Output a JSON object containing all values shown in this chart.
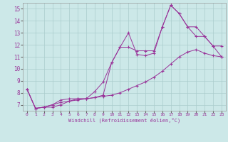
{
  "xlabel": "Windchill (Refroidissement éolien,°C)",
  "xlim": [
    -0.5,
    23.5
  ],
  "ylim": [
    6.5,
    15.5
  ],
  "xticks": [
    0,
    1,
    2,
    3,
    4,
    5,
    6,
    7,
    8,
    9,
    10,
    11,
    12,
    13,
    14,
    15,
    16,
    17,
    18,
    19,
    20,
    21,
    22,
    23
  ],
  "yticks": [
    7,
    8,
    9,
    10,
    11,
    12,
    13,
    14,
    15
  ],
  "background_color": "#cce8e8",
  "grid_color": "#aacccc",
  "line_color": "#993399",
  "line1_x": [
    0,
    1,
    2,
    3,
    4,
    5,
    6,
    7,
    8,
    9,
    10,
    11,
    12,
    13,
    14,
    15,
    16,
    17,
    18,
    19,
    20,
    21,
    22,
    23
  ],
  "line1_y": [
    8.3,
    6.7,
    6.8,
    7.0,
    7.4,
    7.5,
    7.5,
    7.5,
    7.6,
    7.8,
    10.5,
    11.8,
    13.0,
    11.2,
    11.1,
    11.3,
    13.5,
    15.3,
    14.6,
    13.5,
    13.5,
    12.7,
    11.9,
    11.0
  ],
  "line2_x": [
    0,
    1,
    2,
    3,
    4,
    5,
    6,
    7,
    8,
    9,
    10,
    11,
    12,
    13,
    14,
    15,
    16,
    17,
    18,
    19,
    20,
    21,
    22,
    23
  ],
  "line2_y": [
    8.3,
    6.7,
    6.8,
    7.0,
    7.2,
    7.3,
    7.4,
    7.5,
    7.6,
    7.7,
    7.8,
    8.0,
    8.3,
    8.6,
    8.9,
    9.3,
    9.8,
    10.4,
    11.0,
    11.4,
    11.6,
    11.3,
    11.1,
    11.0
  ],
  "line3_x": [
    0,
    1,
    2,
    3,
    4,
    5,
    6,
    7,
    8,
    9,
    10,
    11,
    12,
    13,
    14,
    15,
    16,
    17,
    18,
    19,
    20,
    21,
    22,
    23
  ],
  "line3_y": [
    8.3,
    6.7,
    6.8,
    6.8,
    7.0,
    7.3,
    7.5,
    7.5,
    8.1,
    8.9,
    10.5,
    11.8,
    11.8,
    11.5,
    11.5,
    11.5,
    13.5,
    15.3,
    14.6,
    13.5,
    12.7,
    12.7,
    11.9,
    11.9
  ]
}
